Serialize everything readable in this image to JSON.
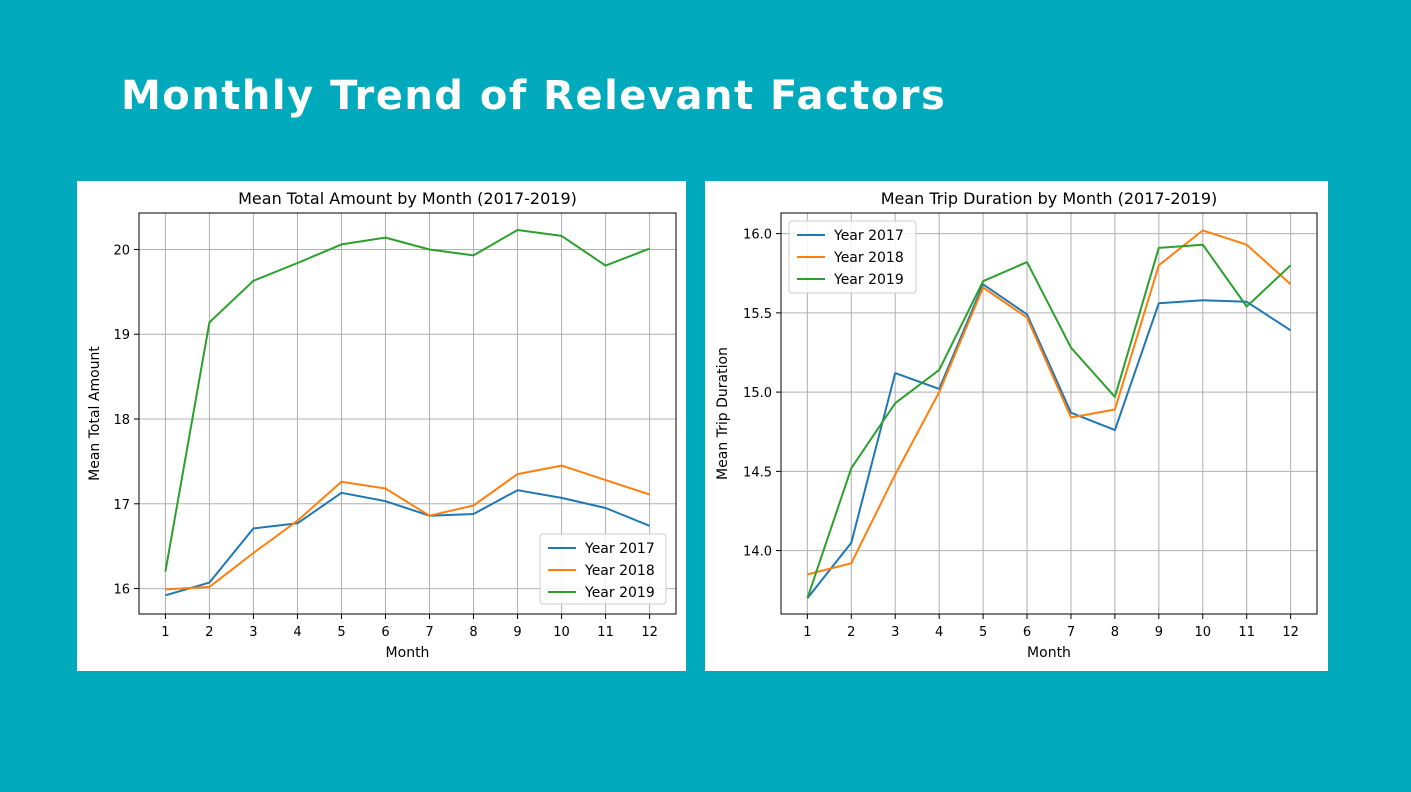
{
  "slide": {
    "title": "Monthly Trend of Relevant Factors"
  },
  "colors": {
    "background": "#00aabd",
    "series": [
      "#1f77b4",
      "#ff7f0e",
      "#2ca02c"
    ]
  },
  "chart_data": [
    {
      "type": "line",
      "title": "Mean Total Amount by Month (2017-2019)",
      "xlabel": "Month",
      "ylabel": "Mean Total Amount",
      "x": [
        1,
        2,
        3,
        4,
        5,
        6,
        7,
        8,
        9,
        10,
        11,
        12
      ],
      "xlim": [
        0.4,
        12.6
      ],
      "ylim": [
        15.7,
        20.43
      ],
      "yticks": [
        16,
        17,
        18,
        19,
        20
      ],
      "ytick_labels": [
        "16",
        "17",
        "18",
        "19",
        "20"
      ],
      "xtick_labels": [
        "1",
        "2",
        "3",
        "4",
        "5",
        "6",
        "7",
        "8",
        "9",
        "10",
        "11",
        "12"
      ],
      "grid": true,
      "legend_position": "lower-right",
      "series": [
        {
          "name": "Year 2017",
          "values": [
            15.92,
            16.07,
            16.71,
            16.77,
            17.13,
            17.03,
            16.86,
            16.88,
            17.16,
            17.07,
            16.95,
            16.74
          ]
        },
        {
          "name": "Year 2018",
          "values": [
            15.99,
            16.02,
            16.42,
            16.8,
            17.26,
            17.18,
            16.86,
            16.98,
            17.35,
            17.45,
            17.28,
            17.11
          ]
        },
        {
          "name": "Year 2019",
          "values": [
            16.2,
            19.14,
            19.63,
            19.84,
            20.06,
            20.14,
            20.0,
            19.93,
            20.23,
            20.16,
            19.81,
            20.01
          ]
        }
      ]
    },
    {
      "type": "line",
      "title": "Mean Trip Duration by Month (2017-2019)",
      "xlabel": "Month",
      "ylabel": "Mean Trip Duration",
      "x": [
        1,
        2,
        3,
        4,
        5,
        6,
        7,
        8,
        9,
        10,
        11,
        12
      ],
      "xlim": [
        0.4,
        12.6
      ],
      "ylim": [
        13.6,
        16.13
      ],
      "yticks": [
        14.0,
        14.5,
        15.0,
        15.5,
        16.0
      ],
      "ytick_labels": [
        "14.0",
        "14.5",
        "15.0",
        "15.5",
        "16.0"
      ],
      "xtick_labels": [
        "1",
        "2",
        "3",
        "4",
        "5",
        "6",
        "7",
        "8",
        "9",
        "10",
        "11",
        "12"
      ],
      "grid": true,
      "legend_position": "upper-left",
      "series": [
        {
          "name": "Year 2017",
          "values": [
            13.7,
            14.05,
            15.12,
            15.02,
            15.68,
            15.49,
            14.87,
            14.76,
            15.56,
            15.58,
            15.57,
            15.39
          ]
        },
        {
          "name": "Year 2018",
          "values": [
            13.85,
            13.92,
            14.48,
            15.0,
            15.66,
            15.47,
            14.84,
            14.89,
            15.8,
            16.02,
            15.93,
            15.68
          ]
        },
        {
          "name": "Year 2019",
          "values": [
            13.7,
            14.52,
            14.93,
            15.14,
            15.7,
            15.82,
            15.28,
            14.97,
            15.91,
            15.93,
            15.54,
            15.8
          ]
        }
      ]
    }
  ]
}
